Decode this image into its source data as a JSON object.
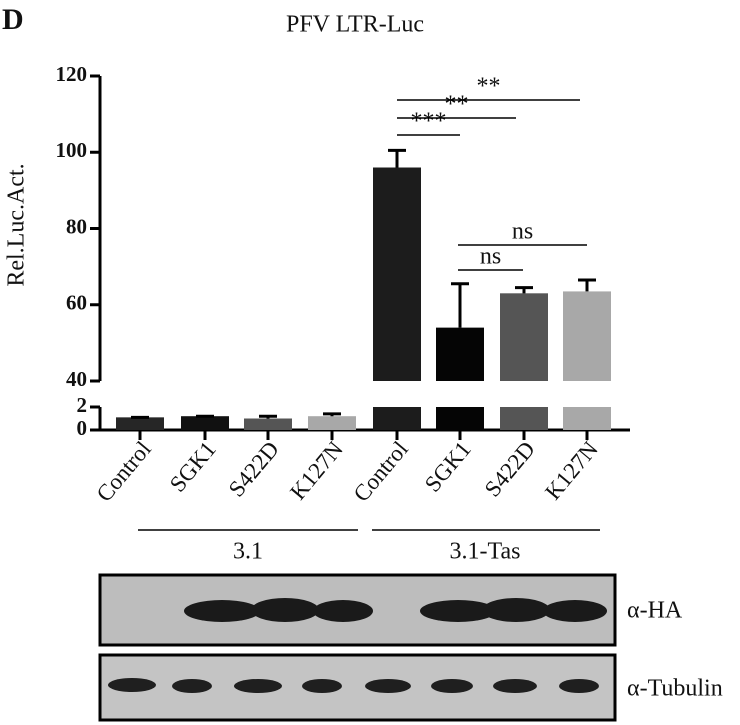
{
  "panel_label": "D",
  "chart_data": {
    "type": "bar",
    "title": "PFV LTR-Luc",
    "y_label": "Rel.Luc.Act.",
    "categories": [
      "Control",
      "SGK1",
      "S422D",
      "K127N",
      "Control",
      "SGK1",
      "S422D",
      "K127N"
    ],
    "values": [
      1.1,
      1.2,
      1.0,
      1.2,
      96,
      54,
      63,
      63.5
    ],
    "errors": [
      0,
      0,
      0.2,
      0.2,
      4.5,
      11.5,
      1.5,
      3
    ],
    "colors": [
      "#262626",
      "#111111",
      "#555555",
      "#a8a8a8",
      "#1c1c1c",
      "#050505",
      "#555555",
      "#a8a8a8"
    ],
    "axis_segments": [
      {
        "ylim": [
          0,
          2
        ],
        "yticks": [
          0,
          2
        ]
      },
      {
        "ylim": [
          40,
          120
        ],
        "yticks": [
          40,
          60,
          80,
          100,
          120
        ]
      }
    ],
    "groups": [
      "3.1",
      "3.1-Tas"
    ],
    "significance": [
      "***",
      "**",
      "**",
      "ns",
      "ns"
    ]
  },
  "blot": {
    "rows": [
      "α-HA",
      "α-Tubulin"
    ]
  }
}
